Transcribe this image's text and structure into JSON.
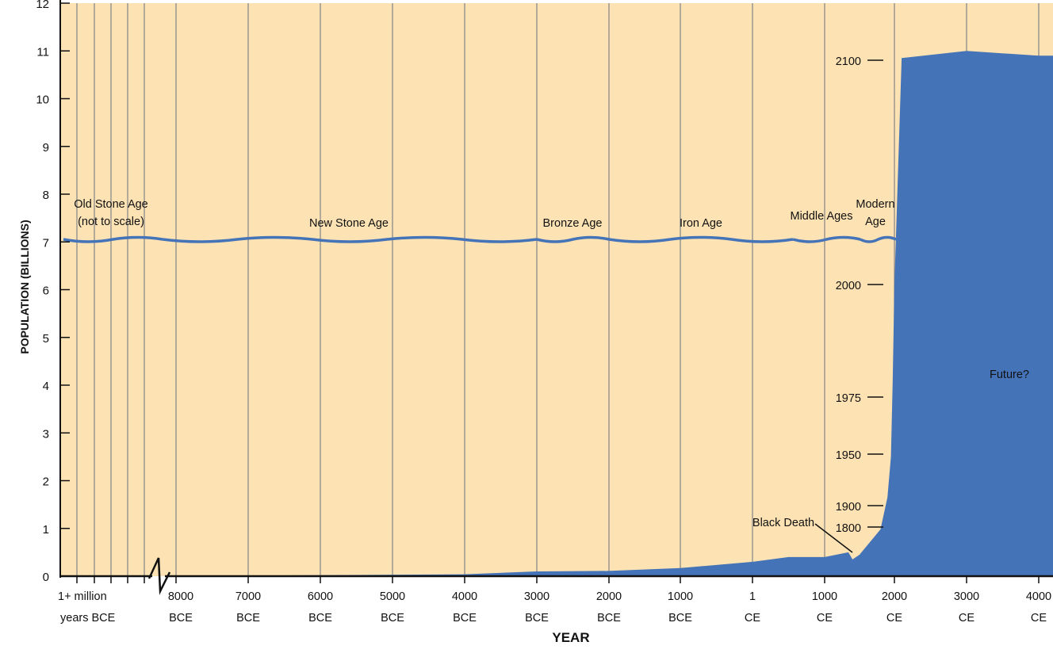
{
  "chart_data": {
    "type": "area",
    "xlabel": "YEAR",
    "ylabel": "POPULATION (BILLIONS)",
    "ylim": [
      0,
      12
    ],
    "y_ticks": [
      0,
      1,
      2,
      3,
      4,
      5,
      6,
      7,
      8,
      9,
      10,
      11,
      12
    ],
    "x_ticks": [
      {
        "line1": "1+ million",
        "line2": "years BCE"
      },
      {
        "line1": "8000",
        "line2": "BCE"
      },
      {
        "line1": "7000",
        "line2": "BCE"
      },
      {
        "line1": "6000",
        "line2": "BCE"
      },
      {
        "line1": "5000",
        "line2": "BCE"
      },
      {
        "line1": "4000",
        "line2": "BCE"
      },
      {
        "line1": "3000",
        "line2": "BCE"
      },
      {
        "line1": "2000",
        "line2": "BCE"
      },
      {
        "line1": "1000",
        "line2": "BCE"
      },
      {
        "line1": "1",
        "line2": "CE"
      },
      {
        "line1": "1000",
        "line2": "CE"
      },
      {
        "line1": "2000",
        "line2": "CE"
      },
      {
        "line1": "3000",
        "line2": "CE"
      },
      {
        "line1": "4000",
        "line2": "CE"
      }
    ],
    "series": [
      {
        "values": [
          {
            "year": -8000,
            "pop": 0.005
          },
          {
            "year": -6000,
            "pop": 0.02
          },
          {
            "year": -4000,
            "pop": 0.04
          },
          {
            "year": -3000,
            "pop": 0.1
          },
          {
            "year": -2000,
            "pop": 0.11
          },
          {
            "year": -1000,
            "pop": 0.17
          },
          {
            "year": 1,
            "pop": 0.3
          },
          {
            "year": 500,
            "pop": 0.4
          },
          {
            "year": 1000,
            "pop": 0.4
          },
          {
            "year": 1340,
            "pop": 0.5
          },
          {
            "year": 1400,
            "pop": 0.35
          },
          {
            "year": 1500,
            "pop": 0.45
          },
          {
            "year": 1800,
            "pop": 0.98
          },
          {
            "year": 1900,
            "pop": 1.65
          },
          {
            "year": 1950,
            "pop": 2.5
          },
          {
            "year": 1975,
            "pop": 4.07
          },
          {
            "year": 2000,
            "pop": 6.1
          },
          {
            "year": 2100,
            "pop": 10.85
          },
          {
            "year": 3000,
            "pop": 11.0
          },
          {
            "year": 4000,
            "pop": 10.9
          }
        ]
      }
    ],
    "eras": [
      {
        "line1": "Old Stone Age",
        "line2": "(not to scale)"
      },
      {
        "line1": "New Stone Age"
      },
      {
        "line1": "Bronze Age"
      },
      {
        "line1": "Iron Age"
      },
      {
        "line1": "Middle Ages"
      },
      {
        "line1": "Modern",
        "line2": "Age"
      }
    ],
    "annotations": [
      {
        "text": "2100",
        "year": 2100,
        "pop": 10.85
      },
      {
        "text": "2000",
        "year": 2000,
        "pop": 6.1
      },
      {
        "text": "1975",
        "year": 1975,
        "pop": 4.07
      },
      {
        "text": "1950",
        "year": 1950,
        "pop": 2.5
      },
      {
        "text": "1900",
        "year": 1900,
        "pop": 1.65
      },
      {
        "text": "1800",
        "year": 1800,
        "pop": 0.98
      },
      {
        "text": "Black Death",
        "year": 1400,
        "pop": 0.35
      },
      {
        "text": "Future?"
      }
    ],
    "colors": {
      "background": "#fde3b4",
      "area": "#4573b8",
      "grid": "#8a8a8a"
    }
  }
}
